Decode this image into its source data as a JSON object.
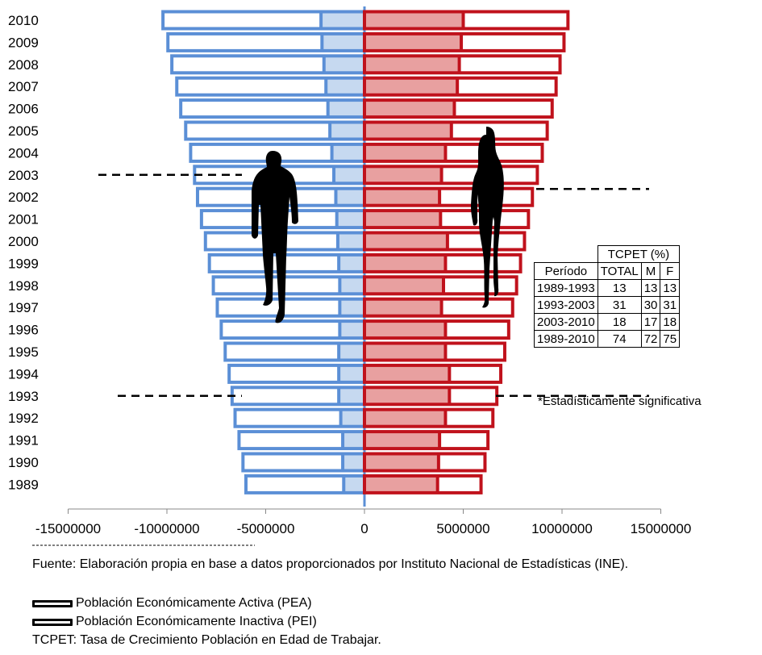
{
  "chart_data": {
    "type": "bar",
    "subtype": "population-pyramid",
    "categories": [
      "2010",
      "2009",
      "2008",
      "2007",
      "2006",
      "2005",
      "2004",
      "2003",
      "2002",
      "2001",
      "2000",
      "1999",
      "1998",
      "1997",
      "1996",
      "1995",
      "1994",
      "1993",
      "1992",
      "1991",
      "1990",
      "1989"
    ],
    "series": [
      {
        "side": "left",
        "color": "#5b8fd6",
        "inner_fill": "#c6d9f0",
        "total": [
          -10200000,
          -9950000,
          -9750000,
          -9500000,
          -9300000,
          -9050000,
          -8800000,
          -8600000,
          -8450000,
          -8250000,
          -8050000,
          -7850000,
          -7650000,
          -7450000,
          -7250000,
          -7050000,
          -6850000,
          -6700000,
          -6550000,
          -6350000,
          -6150000,
          -6000000
        ],
        "inactive": [
          -2200000,
          -2150000,
          -2050000,
          -1950000,
          -1850000,
          -1750000,
          -1650000,
          -1550000,
          -1450000,
          -1400000,
          -1350000,
          -1300000,
          -1250000,
          -1250000,
          -1250000,
          -1300000,
          -1300000,
          -1300000,
          -1200000,
          -1100000,
          -1100000,
          -1050000
        ]
      },
      {
        "side": "right",
        "color": "#c0121c",
        "inner_fill": "#e8a0a0",
        "total": [
          10300000,
          10100000,
          9900000,
          9700000,
          9500000,
          9250000,
          9000000,
          8750000,
          8500000,
          8300000,
          8100000,
          7900000,
          7700000,
          7500000,
          7300000,
          7100000,
          6900000,
          6700000,
          6500000,
          6250000,
          6100000,
          5900000
        ],
        "inactive": [
          5000000,
          4900000,
          4800000,
          4700000,
          4550000,
          4400000,
          4100000,
          3900000,
          3800000,
          3850000,
          4200000,
          4100000,
          4000000,
          3900000,
          4100000,
          4100000,
          4300000,
          4300000,
          4100000,
          3800000,
          3750000,
          3700000
        ]
      }
    ],
    "xticks": [
      "-15000000",
      "-10000000",
      "-5000000",
      "0",
      "5000000",
      "10000000",
      "15000000"
    ],
    "xlim": [
      -15000000,
      15000000
    ],
    "reference_lines": [
      {
        "category": "2003",
        "side": "left"
      },
      {
        "category": "2002",
        "side": "right"
      },
      {
        "category": "1993",
        "side": "left"
      },
      {
        "category": "1993",
        "side": "right"
      }
    ]
  },
  "table": {
    "header_group": "TCPET (%)",
    "columns": [
      "Período",
      "TOTAL",
      "M",
      "F"
    ],
    "rows": [
      [
        "1989-1993",
        "13",
        "13",
        "13"
      ],
      [
        "1993-2003",
        "31",
        "30",
        "31"
      ],
      [
        "2003-2010",
        "18",
        "17",
        "18"
      ],
      [
        "1989-2010",
        "74",
        "72",
        "75"
      ]
    ],
    "note": "*Estadísticamente significativa"
  },
  "footer": {
    "source": "Fuente: Elaboración propia en base a datos proporcionados por Instituto Nacional de Estadísticas (INE).",
    "legend": [
      "Población Económicamente Activa (PEA)",
      "Población Económicamente Inactiva (PEI)"
    ],
    "definition": "TCPET: Tasa de Crecimiento Población en Edad de Trabajar."
  }
}
